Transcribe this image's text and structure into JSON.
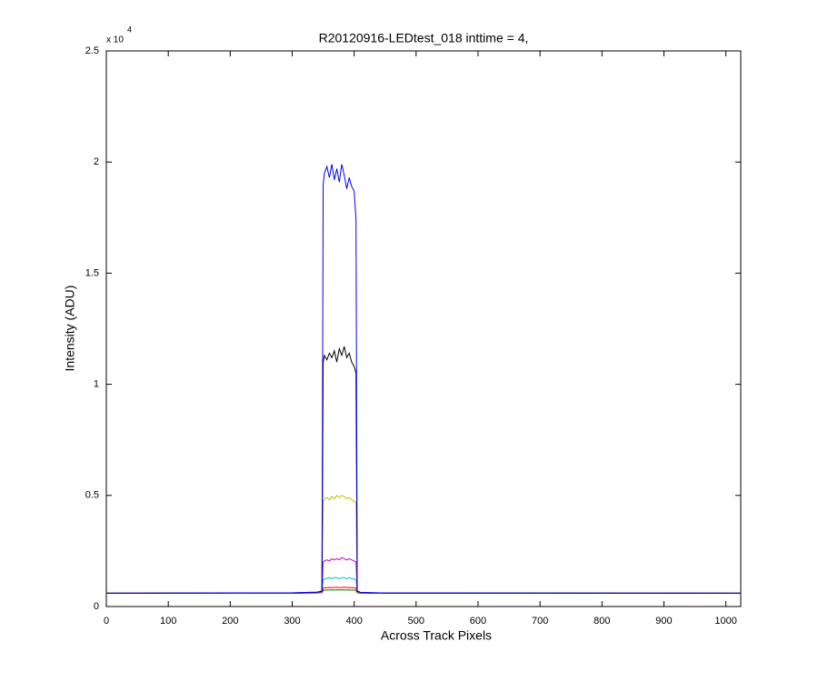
{
  "chart_data": {
    "type": "line",
    "title": "R20120916-LEDtest_018 inttime = 4,",
    "x_label": "Across Track Pixels",
    "y_label": "Intensity (ADU)",
    "y_exponent_base": "x 10",
    "y_exponent_power": "4",
    "x": [
      0,
      300,
      340,
      348,
      350,
      352,
      356,
      360,
      364,
      368,
      372,
      376,
      380,
      384,
      388,
      392,
      396,
      400,
      403,
      405,
      410,
      450,
      1024
    ],
    "series": [
      {
        "color": "#0000ff",
        "values": [
          600,
          620,
          650,
          700,
          19000,
          19500,
          19800,
          19300,
          19900,
          19200,
          19700,
          19100,
          19900,
          19400,
          18800,
          19300,
          18900,
          18700,
          17400,
          700,
          640,
          610,
          600
        ]
      },
      {
        "color": "#000000",
        "values": [
          600,
          610,
          640,
          680,
          11000,
          11300,
          11100,
          11400,
          11200,
          11500,
          11000,
          11600,
          11300,
          11700,
          11200,
          11400,
          11000,
          10800,
          10500,
          680,
          630,
          605,
          600
        ]
      },
      {
        "color": "#bfbf00",
        "values": [
          600,
          610,
          630,
          660,
          4700,
          4850,
          4900,
          4800,
          4950,
          4850,
          5000,
          4900,
          5000,
          4950,
          4850,
          4900,
          4800,
          4750,
          4650,
          650,
          620,
          605,
          600
        ]
      },
      {
        "color": "#bf00bf",
        "values": [
          600,
          605,
          620,
          640,
          2000,
          2050,
          2100,
          2050,
          2150,
          2100,
          2150,
          2100,
          2200,
          2150,
          2100,
          2150,
          2100,
          2050,
          2000,
          630,
          615,
          602,
          600
        ]
      },
      {
        "color": "#00bfbf",
        "values": [
          600,
          605,
          615,
          630,
          1200,
          1250,
          1250,
          1300,
          1250,
          1300,
          1300,
          1250,
          1300,
          1300,
          1250,
          1300,
          1250,
          1250,
          1200,
          625,
          610,
          602,
          600
        ]
      },
      {
        "color": "#ff0000",
        "values": [
          600,
          602,
          610,
          620,
          820,
          840,
          850,
          860,
          850,
          860,
          870,
          850,
          860,
          870,
          850,
          860,
          850,
          840,
          830,
          615,
          605,
          600,
          600
        ]
      },
      {
        "color": "#008000",
        "values": [
          600,
          602,
          608,
          615,
          720,
          730,
          740,
          740,
          750,
          740,
          750,
          740,
          750,
          745,
          740,
          745,
          740,
          735,
          725,
          612,
          604,
          600,
          600
        ]
      }
    ],
    "xlim": [
      0,
      1024
    ],
    "xticks": [
      0,
      100,
      200,
      300,
      400,
      500,
      600,
      700,
      800,
      900,
      1000
    ],
    "ylim": [
      0,
      25000
    ],
    "yticks": [
      {
        "value": 0,
        "label": "0"
      },
      {
        "value": 5000,
        "label": "0.5"
      },
      {
        "value": 10000,
        "label": "1"
      },
      {
        "value": 15000,
        "label": "1.5"
      },
      {
        "value": 20000,
        "label": "2"
      },
      {
        "value": 25000,
        "label": "2.5"
      }
    ]
  }
}
